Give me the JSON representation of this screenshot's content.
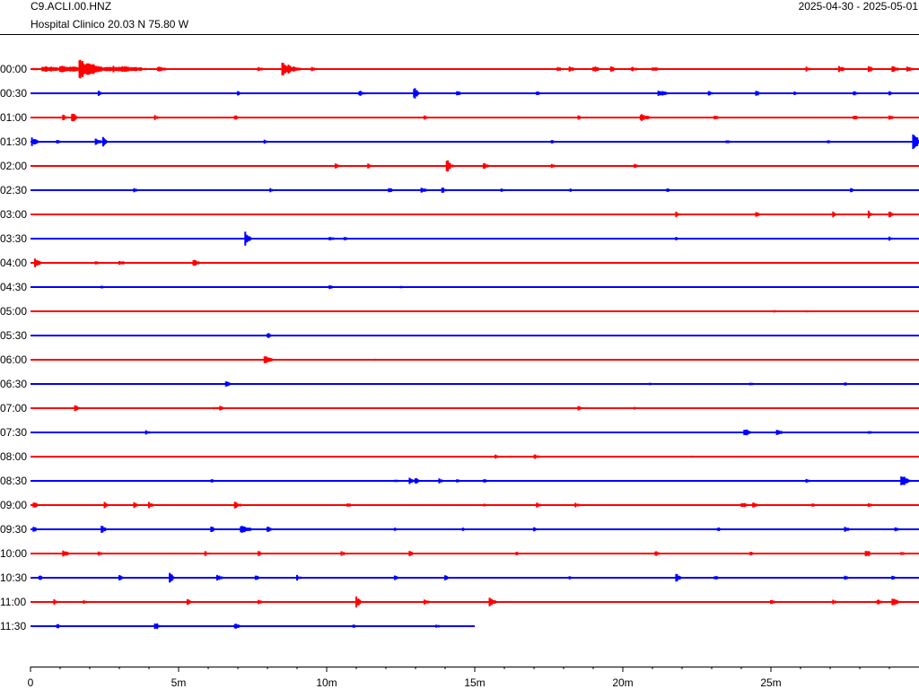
{
  "header": {
    "station": "C9.ACLI.00.HNZ",
    "location": "Hospital Clinico  20.03 N 75.80 W",
    "date_range": "2025-04-30 - 2025-05-01"
  },
  "chart_data": {
    "type": "line",
    "title": "C9.ACLI.00.HNZ",
    "subtitle": "Hospital Clinico  20.03 N 75.80 W",
    "xlabel": "",
    "ylabel": "",
    "x_unit": "minutes",
    "xlim": [
      0,
      30
    ],
    "x_ticks": [
      0,
      5,
      10,
      15,
      20,
      25
    ],
    "x_tick_labels": [
      "0",
      "5m",
      "10m",
      "15m",
      "20m",
      "25m"
    ],
    "colors": [
      "#ff0000",
      "#0000ff"
    ],
    "series": [
      {
        "name": "00:00",
        "color": "#ff0000",
        "end": 30,
        "events": [
          [
            0.1,
            0.8,
            0.12
          ],
          [
            0.4,
            0.8,
            0.3
          ],
          [
            0.7,
            0.8,
            0.25
          ],
          [
            1.0,
            0.9,
            0.35
          ],
          [
            1.35,
            0.8,
            0.3
          ],
          [
            1.65,
            1.0,
            0.9
          ],
          [
            1.9,
            0.8,
            0.3
          ],
          [
            2.2,
            0.8,
            0.3
          ],
          [
            2.5,
            0.8,
            0.3
          ],
          [
            2.8,
            0.8,
            0.3
          ],
          [
            3.1,
            0.8,
            0.3
          ],
          [
            3.4,
            0.8,
            0.3
          ],
          [
            4.3,
            0.4,
            0.3
          ],
          [
            7.7,
            0.3,
            0.2
          ],
          [
            8.5,
            0.6,
            0.7
          ],
          [
            9.5,
            0.3,
            0.2
          ],
          [
            17.8,
            0.3,
            0.25
          ],
          [
            18.2,
            0.3,
            0.25
          ],
          [
            19.0,
            0.3,
            0.35
          ],
          [
            19.6,
            0.3,
            0.3
          ],
          [
            20.3,
            0.3,
            0.25
          ],
          [
            21.0,
            0.3,
            0.3
          ],
          [
            26.2,
            0.3,
            0.25
          ],
          [
            27.3,
            0.3,
            0.3
          ],
          [
            28.3,
            0.3,
            0.3
          ],
          [
            29.1,
            0.3,
            0.35
          ],
          [
            29.6,
            0.3,
            0.3
          ]
        ]
      },
      {
        "name": "00:30",
        "color": "#0000ff",
        "end": 30,
        "events": [
          [
            2.3,
            0.2,
            0.25
          ],
          [
            7.0,
            0.2,
            0.2
          ],
          [
            11.1,
            0.3,
            0.3
          ],
          [
            12.95,
            0.2,
            0.6
          ],
          [
            14.4,
            0.2,
            0.3
          ],
          [
            17.1,
            0.2,
            0.2
          ],
          [
            21.2,
            0.5,
            0.3
          ],
          [
            22.9,
            0.2,
            0.3
          ],
          [
            24.5,
            0.2,
            0.3
          ],
          [
            25.8,
            0.2,
            0.25
          ],
          [
            27.8,
            0.2,
            0.25
          ],
          [
            29.0,
            0.2,
            0.2
          ]
        ]
      },
      {
        "name": "01:00",
        "color": "#ff0000",
        "end": 30,
        "events": [
          [
            1.1,
            0.2,
            0.35
          ],
          [
            1.4,
            0.2,
            0.55
          ],
          [
            4.2,
            0.2,
            0.25
          ],
          [
            6.9,
            0.2,
            0.25
          ],
          [
            13.3,
            0.2,
            0.2
          ],
          [
            18.5,
            0.2,
            0.2
          ],
          [
            20.6,
            0.5,
            0.35
          ],
          [
            23.1,
            0.2,
            0.25
          ],
          [
            27.8,
            0.2,
            0.25
          ],
          [
            29.0,
            0.2,
            0.25
          ]
        ]
      },
      {
        "name": "01:30",
        "color": "#0000ff",
        "end": 30,
        "events": [
          [
            0.05,
            0.3,
            0.4
          ],
          [
            0.9,
            0.2,
            0.2
          ],
          [
            2.2,
            0.3,
            0.3
          ],
          [
            2.45,
            0.2,
            0.45
          ],
          [
            7.9,
            0.2,
            0.2
          ],
          [
            17.6,
            0.2,
            0.2
          ],
          [
            23.5,
            0.2,
            0.2
          ],
          [
            26.9,
            0.2,
            0.2
          ],
          [
            29.8,
            0.25,
            1.0
          ]
        ]
      },
      {
        "name": "02:00",
        "color": "#ff0000",
        "end": 30,
        "events": [
          [
            10.3,
            0.2,
            0.25
          ],
          [
            11.4,
            0.2,
            0.25
          ],
          [
            14.05,
            0.2,
            0.75
          ],
          [
            15.3,
            0.3,
            0.3
          ],
          [
            17.6,
            0.2,
            0.2
          ],
          [
            20.4,
            0.2,
            0.2
          ]
        ]
      },
      {
        "name": "02:30",
        "color": "#0000ff",
        "end": 30,
        "events": [
          [
            3.5,
            0.2,
            0.25
          ],
          [
            8.1,
            0.2,
            0.2
          ],
          [
            12.1,
            0.2,
            0.35
          ],
          [
            13.2,
            0.3,
            0.3
          ],
          [
            13.9,
            0.2,
            0.3
          ],
          [
            15.9,
            0.2,
            0.2
          ],
          [
            18.2,
            0.2,
            0.2
          ],
          [
            21.5,
            0.2,
            0.2
          ],
          [
            27.7,
            0.2,
            0.25
          ]
        ]
      },
      {
        "name": "03:00",
        "color": "#ff0000",
        "end": 30,
        "events": [
          [
            21.8,
            0.2,
            0.3
          ],
          [
            24.5,
            0.2,
            0.25
          ],
          [
            27.1,
            0.2,
            0.35
          ],
          [
            28.3,
            0.2,
            0.4
          ],
          [
            29.0,
            0.2,
            0.3
          ]
        ]
      },
      {
        "name": "03:30",
        "color": "#0000ff",
        "end": 30,
        "events": [
          [
            7.25,
            0.2,
            0.75
          ],
          [
            10.1,
            0.2,
            0.3
          ],
          [
            10.6,
            0.2,
            0.2
          ],
          [
            21.8,
            0.2,
            0.2
          ],
          [
            29.0,
            0.2,
            0.2
          ]
        ]
      },
      {
        "name": "04:00",
        "color": "#ff0000",
        "end": 30,
        "events": [
          [
            0.15,
            0.3,
            0.45
          ],
          [
            2.2,
            0.2,
            0.25
          ],
          [
            3.0,
            0.3,
            0.25
          ],
          [
            5.5,
            0.3,
            0.35
          ]
        ]
      },
      {
        "name": "04:30",
        "color": "#0000ff",
        "end": 30,
        "events": [
          [
            2.4,
            0.2,
            0.2
          ],
          [
            10.1,
            0.2,
            0.2
          ],
          [
            12.5,
            0.2,
            0.2
          ]
        ]
      },
      {
        "name": "05:00",
        "color": "#ff0000",
        "end": 30,
        "events": [
          [
            25.1,
            0.2,
            0.15
          ],
          [
            26.2,
            0.2,
            0.15
          ]
        ]
      },
      {
        "name": "05:30",
        "color": "#0000ff",
        "end": 30,
        "events": [
          [
            8.0,
            0.2,
            0.3
          ]
        ]
      },
      {
        "name": "06:00",
        "color": "#ff0000",
        "end": 30,
        "events": [
          [
            7.9,
            0.4,
            0.35
          ],
          [
            11.6,
            0.2,
            0.15
          ]
        ]
      },
      {
        "name": "06:30",
        "color": "#0000ff",
        "end": 30,
        "events": [
          [
            6.6,
            0.2,
            0.3
          ],
          [
            20.9,
            0.2,
            0.15
          ],
          [
            24.3,
            0.2,
            0.2
          ],
          [
            27.5,
            0.2,
            0.15
          ]
        ]
      },
      {
        "name": "07:00",
        "color": "#ff0000",
        "end": 30,
        "events": [
          [
            1.5,
            0.2,
            0.35
          ],
          [
            6.2,
            0.2,
            0.2
          ],
          [
            6.4,
            0.2,
            0.25
          ],
          [
            18.5,
            0.2,
            0.25
          ],
          [
            20.4,
            0.2,
            0.15
          ]
        ]
      },
      {
        "name": "07:30",
        "color": "#0000ff",
        "end": 30,
        "events": [
          [
            3.9,
            0.2,
            0.25
          ],
          [
            24.1,
            0.3,
            0.4
          ],
          [
            25.2,
            0.3,
            0.3
          ],
          [
            28.3,
            0.2,
            0.2
          ]
        ]
      },
      {
        "name": "08:00",
        "color": "#ff0000",
        "end": 30,
        "events": [
          [
            15.7,
            0.2,
            0.2
          ],
          [
            16.2,
            0.2,
            0.15
          ],
          [
            17.0,
            0.3,
            0.25
          ],
          [
            22.3,
            0.2,
            0.15
          ]
        ]
      },
      {
        "name": "08:30",
        "color": "#0000ff",
        "end": 30,
        "events": [
          [
            6.1,
            0.2,
            0.2
          ],
          [
            12.3,
            0.2,
            0.2
          ],
          [
            12.8,
            0.3,
            0.3
          ],
          [
            13.0,
            0.2,
            0.3
          ],
          [
            13.8,
            0.2,
            0.25
          ],
          [
            14.4,
            0.2,
            0.25
          ],
          [
            15.3,
            0.2,
            0.2
          ],
          [
            26.2,
            0.2,
            0.2
          ],
          [
            29.4,
            0.3,
            0.7
          ]
        ]
      },
      {
        "name": "09:00",
        "color": "#ff0000",
        "end": 30,
        "events": [
          [
            0.1,
            0.3,
            0.3
          ],
          [
            2.5,
            0.2,
            0.3
          ],
          [
            3.5,
            0.2,
            0.3
          ],
          [
            4.0,
            0.2,
            0.3
          ],
          [
            6.9,
            0.3,
            0.35
          ],
          [
            10.7,
            0.2,
            0.25
          ],
          [
            15.3,
            0.2,
            0.2
          ],
          [
            17.1,
            0.3,
            0.3
          ],
          [
            18.4,
            0.2,
            0.25
          ],
          [
            24.0,
            0.3,
            0.3
          ],
          [
            24.4,
            0.2,
            0.3
          ],
          [
            26.4,
            0.2,
            0.2
          ],
          [
            28.3,
            0.2,
            0.2
          ]
        ]
      },
      {
        "name": "09:30",
        "color": "#0000ff",
        "end": 30,
        "events": [
          [
            0.1,
            0.2,
            0.3
          ],
          [
            2.4,
            0.2,
            0.45
          ],
          [
            6.1,
            0.2,
            0.3
          ],
          [
            7.1,
            0.5,
            0.4
          ],
          [
            8.0,
            0.2,
            0.3
          ],
          [
            12.3,
            0.2,
            0.25
          ],
          [
            14.6,
            0.2,
            0.2
          ],
          [
            17.0,
            0.2,
            0.2
          ],
          [
            23.2,
            0.2,
            0.25
          ],
          [
            27.5,
            0.2,
            0.3
          ],
          [
            29.2,
            0.2,
            0.25
          ]
        ]
      },
      {
        "name": "10:00",
        "color": "#ff0000",
        "end": 30,
        "events": [
          [
            1.1,
            0.3,
            0.4
          ],
          [
            2.3,
            0.2,
            0.2
          ],
          [
            5.9,
            0.2,
            0.25
          ],
          [
            7.7,
            0.2,
            0.25
          ],
          [
            10.5,
            0.2,
            0.25
          ],
          [
            12.8,
            0.2,
            0.25
          ],
          [
            16.4,
            0.2,
            0.2
          ],
          [
            21.1,
            0.2,
            0.3
          ],
          [
            24.3,
            0.2,
            0.25
          ],
          [
            28.2,
            0.3,
            0.35
          ],
          [
            29.4,
            0.2,
            0.2
          ]
        ]
      },
      {
        "name": "10:30",
        "color": "#0000ff",
        "end": 30,
        "events": [
          [
            0.3,
            0.2,
            0.25
          ],
          [
            3.0,
            0.2,
            0.3
          ],
          [
            4.7,
            0.2,
            0.5
          ],
          [
            6.3,
            0.3,
            0.3
          ],
          [
            7.6,
            0.2,
            0.25
          ],
          [
            9.0,
            0.2,
            0.3
          ],
          [
            12.3,
            0.2,
            0.25
          ],
          [
            14.0,
            0.2,
            0.25
          ],
          [
            18.2,
            0.2,
            0.2
          ],
          [
            21.8,
            0.2,
            0.45
          ],
          [
            23.1,
            0.2,
            0.25
          ],
          [
            27.5,
            0.2,
            0.3
          ],
          [
            29.1,
            0.2,
            0.2
          ]
        ]
      },
      {
        "name": "11:00",
        "color": "#ff0000",
        "end": 30,
        "events": [
          [
            0.8,
            0.2,
            0.25
          ],
          [
            1.8,
            0.2,
            0.2
          ],
          [
            5.3,
            0.2,
            0.3
          ],
          [
            7.7,
            0.2,
            0.25
          ],
          [
            11.0,
            0.2,
            0.55
          ],
          [
            13.3,
            0.3,
            0.35
          ],
          [
            15.5,
            0.3,
            0.45
          ],
          [
            25.0,
            0.2,
            0.25
          ],
          [
            27.1,
            0.2,
            0.25
          ],
          [
            28.6,
            0.2,
            0.3
          ],
          [
            29.1,
            0.3,
            0.45
          ]
        ]
      },
      {
        "name": "11:30",
        "color": "#0000ff",
        "end": 15,
        "events": [
          [
            0.9,
            0.2,
            0.25
          ],
          [
            4.2,
            0.2,
            0.45
          ],
          [
            6.9,
            0.3,
            0.3
          ],
          [
            10.9,
            0.2,
            0.25
          ],
          [
            13.7,
            0.2,
            0.2
          ]
        ]
      }
    ]
  }
}
